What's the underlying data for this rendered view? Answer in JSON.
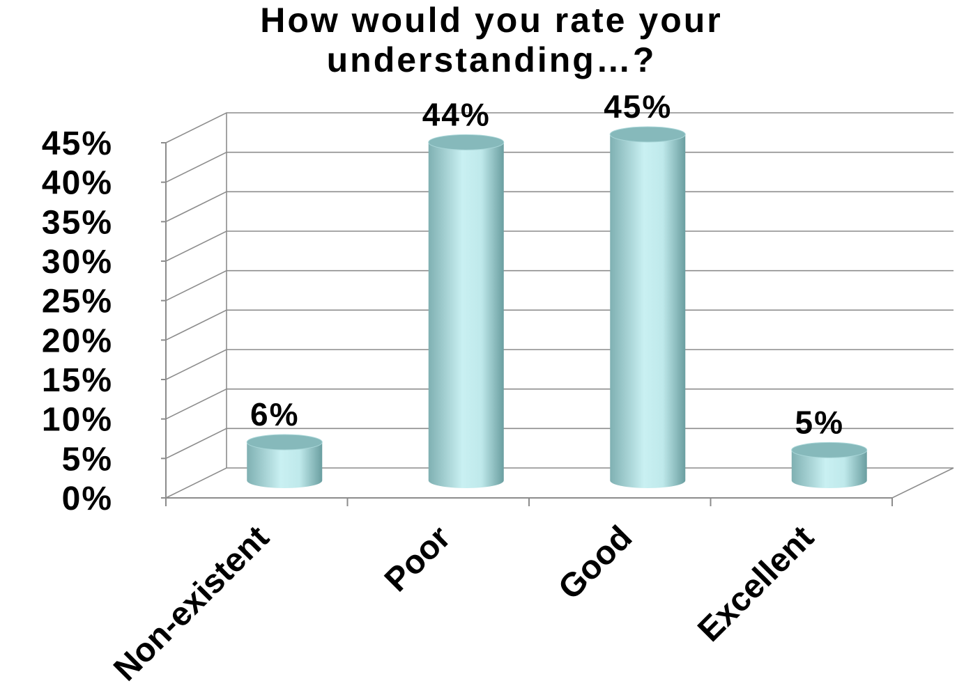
{
  "chart_data": {
    "type": "bar",
    "style": "3d-cylinder",
    "title_lines": [
      "How would you rate your",
      "understanding…?"
    ],
    "categories": [
      "Non-existent",
      "Poor",
      "Good",
      "Excellent"
    ],
    "values": [
      6,
      44,
      45,
      5
    ],
    "data_labels": [
      "6%",
      "44%",
      "45%",
      "5%"
    ],
    "y_ticks": [
      "0%",
      "5%",
      "10%",
      "15%",
      "20%",
      "25%",
      "30%",
      "35%",
      "40%",
      "45%"
    ],
    "ylim": [
      0,
      45
    ],
    "grid": true,
    "legend": "none",
    "colors": {
      "bar_light": "#c9f0f2",
      "bar_mid": "#9fd0d2",
      "bar_dark": "#6a9ea0",
      "bar_top": "#86b9bb",
      "grid": "#8c8c8c"
    }
  }
}
